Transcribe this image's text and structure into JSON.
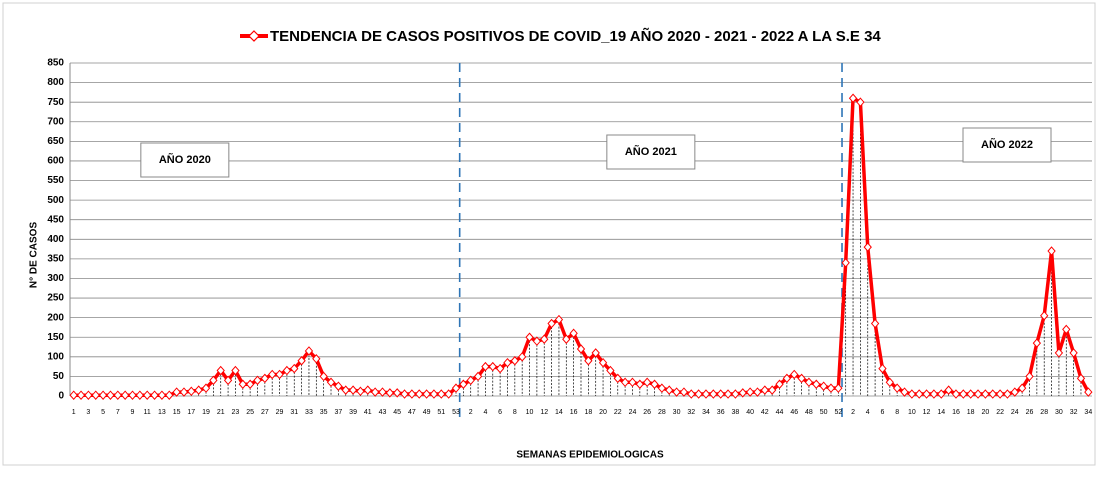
{
  "chart_data": {
    "type": "line",
    "series": [
      {
        "name": "TENDENCIA DE CASOS  POSITIVOS DE  COVID_19   AÑO  2020  -  2021 - 2022  A LA S.E 34",
        "color": "#ff0000",
        "values": [
          2,
          2,
          2,
          2,
          2,
          2,
          2,
          2,
          2,
          2,
          2,
          2,
          2,
          2,
          10,
          10,
          12,
          15,
          20,
          40,
          65,
          40,
          65,
          30,
          30,
          40,
          45,
          55,
          55,
          65,
          70,
          90,
          115,
          95,
          50,
          35,
          25,
          15,
          15,
          12,
          15,
          10,
          10,
          8,
          8,
          5,
          5,
          5,
          5,
          5,
          5,
          5,
          20,
          30,
          40,
          50,
          75,
          75,
          70,
          85,
          90,
          100,
          150,
          140,
          145,
          185,
          195,
          145,
          160,
          120,
          90,
          110,
          85,
          65,
          45,
          35,
          35,
          30,
          35,
          30,
          20,
          15,
          10,
          10,
          5,
          5,
          5,
          5,
          5,
          5,
          5,
          8,
          10,
          10,
          15,
          15,
          30,
          45,
          55,
          45,
          35,
          30,
          25,
          20,
          20,
          340,
          760,
          750,
          380,
          185,
          70,
          35,
          20,
          10,
          5,
          5,
          5,
          5,
          5,
          15,
          5,
          5,
          5,
          5,
          5,
          5,
          5,
          5,
          10,
          20,
          50,
          135,
          205,
          370,
          110,
          170,
          110,
          45,
          10
        ]
      }
    ],
    "categories": [
      "1",
      null,
      "3",
      null,
      "5",
      null,
      "7",
      null,
      "9",
      null,
      "11",
      null,
      "13",
      null,
      "15",
      null,
      "17",
      null,
      "19",
      null,
      "21",
      null,
      "23",
      null,
      "25",
      null,
      "27",
      null,
      "29",
      null,
      "31",
      null,
      "33",
      null,
      "35",
      null,
      "37",
      null,
      "39",
      null,
      "41",
      null,
      "43",
      null,
      "45",
      null,
      "47",
      null,
      "49",
      null,
      "51",
      null,
      "53",
      null,
      "2",
      null,
      "4",
      null,
      "6",
      null,
      "8",
      null,
      "10",
      null,
      "12",
      null,
      "14",
      null,
      "16",
      null,
      "18",
      null,
      "20",
      null,
      "22",
      null,
      "24",
      null,
      "26",
      null,
      "28",
      null,
      "30",
      null,
      "32",
      null,
      "34",
      null,
      "36",
      null,
      "38",
      null,
      "40",
      null,
      "42",
      null,
      "44",
      null,
      "46",
      null,
      "48",
      null,
      "50",
      null,
      "52",
      null,
      "2",
      null,
      "4",
      null,
      "6",
      null,
      "8",
      null,
      "10",
      null,
      "12",
      null,
      "14",
      null,
      "16",
      null,
      "18",
      null,
      "20",
      null,
      "22",
      null,
      "24",
      null,
      "26",
      null,
      "28",
      null,
      "30",
      null,
      "32",
      null,
      "34"
    ],
    "ylim": [
      0,
      850
    ],
    "yticks": [
      0,
      50,
      100,
      150,
      200,
      250,
      300,
      350,
      400,
      450,
      500,
      550,
      600,
      650,
      700,
      750,
      800,
      850
    ],
    "grid": true,
    "xlabel": "SEMANAS  EPIDEMIOLOGICAS",
    "ylabel": "N°  DE CASOS",
    "annotations": [
      "AÑO 2020",
      "AÑO 2021",
      "AÑO 2022"
    ]
  }
}
